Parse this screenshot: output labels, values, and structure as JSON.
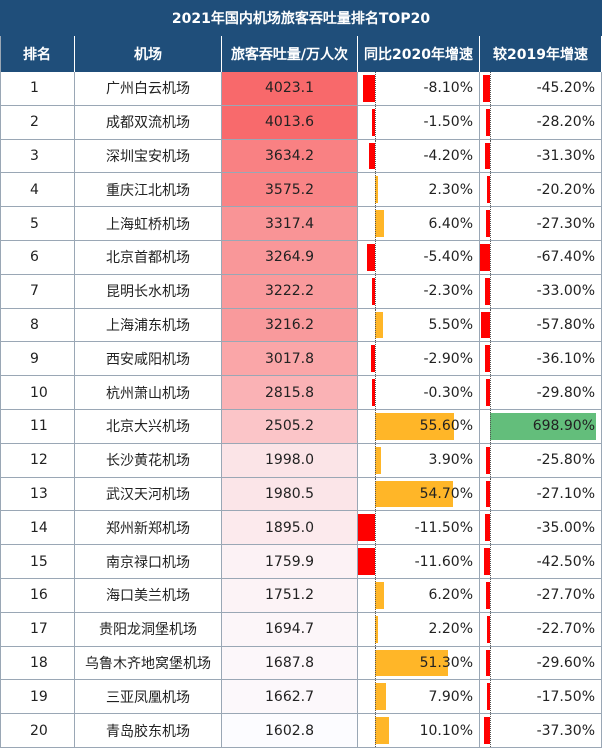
{
  "chart_data": {
    "type": "table",
    "title": "2021年国内机场旅客吞吐量排名TOP20",
    "columns": [
      "排名",
      "机场",
      "旅客吞吐量/万人次",
      "同比2020年增速",
      "较2019年增速"
    ],
    "rows": [
      {
        "rank": "1",
        "airport": "广州白云机场",
        "value": "4023.1",
        "vs2020": "-8.10%",
        "vs2019": "-45.20%",
        "v": 4023.1,
        "g20": -8.1,
        "g19": -45.2
      },
      {
        "rank": "2",
        "airport": "成都双流机场",
        "value": "4013.6",
        "vs2020": "-1.50%",
        "vs2019": "-28.20%",
        "v": 4013.6,
        "g20": -1.5,
        "g19": -28.2
      },
      {
        "rank": "3",
        "airport": "深圳宝安机场",
        "value": "3634.2",
        "vs2020": "-4.20%",
        "vs2019": "-31.30%",
        "v": 3634.2,
        "g20": -4.2,
        "g19": -31.3
      },
      {
        "rank": "4",
        "airport": "重庆江北机场",
        "value": "3575.2",
        "vs2020": "2.30%",
        "vs2019": "-20.20%",
        "v": 3575.2,
        "g20": 2.3,
        "g19": -20.2
      },
      {
        "rank": "5",
        "airport": "上海虹桥机场",
        "value": "3317.4",
        "vs2020": "6.40%",
        "vs2019": "-27.30%",
        "v": 3317.4,
        "g20": 6.4,
        "g19": -27.3
      },
      {
        "rank": "6",
        "airport": "北京首都机场",
        "value": "3264.9",
        "vs2020": "-5.40%",
        "vs2019": "-67.40%",
        "v": 3264.9,
        "g20": -5.4,
        "g19": -67.4
      },
      {
        "rank": "7",
        "airport": "昆明长水机场",
        "value": "3222.2",
        "vs2020": "-2.30%",
        "vs2019": "-33.00%",
        "v": 3222.2,
        "g20": -2.3,
        "g19": -33.0
      },
      {
        "rank": "8",
        "airport": "上海浦东机场",
        "value": "3216.2",
        "vs2020": "5.50%",
        "vs2019": "-57.80%",
        "v": 3216.2,
        "g20": 5.5,
        "g19": -57.8
      },
      {
        "rank": "9",
        "airport": "西安咸阳机场",
        "value": "3017.8",
        "vs2020": "-2.90%",
        "vs2019": "-36.10%",
        "v": 3017.8,
        "g20": -2.9,
        "g19": -36.1
      },
      {
        "rank": "10",
        "airport": "杭州萧山机场",
        "value": "2815.8",
        "vs2020": "-0.30%",
        "vs2019": "-29.80%",
        "v": 2815.8,
        "g20": -0.3,
        "g19": -29.8
      },
      {
        "rank": "11",
        "airport": "北京大兴机场",
        "value": "2505.2",
        "vs2020": "55.60%",
        "vs2019": "698.90%",
        "v": 2505.2,
        "g20": 55.6,
        "g19": 698.9
      },
      {
        "rank": "12",
        "airport": "长沙黄花机场",
        "value": "1998.0",
        "vs2020": "3.90%",
        "vs2019": "-25.80%",
        "v": 1998.0,
        "g20": 3.9,
        "g19": -25.8
      },
      {
        "rank": "13",
        "airport": "武汉天河机场",
        "value": "1980.5",
        "vs2020": "54.70%",
        "vs2019": "-27.10%",
        "v": 1980.5,
        "g20": 54.7,
        "g19": -27.1
      },
      {
        "rank": "14",
        "airport": "郑州新郑机场",
        "value": "1895.0",
        "vs2020": "-11.50%",
        "vs2019": "-35.00%",
        "v": 1895.0,
        "g20": -11.5,
        "g19": -35.0
      },
      {
        "rank": "15",
        "airport": "南京禄口机场",
        "value": "1759.9",
        "vs2020": "-11.60%",
        "vs2019": "-42.50%",
        "v": 1759.9,
        "g20": -11.6,
        "g19": -42.5
      },
      {
        "rank": "16",
        "airport": "海口美兰机场",
        "value": "1751.2",
        "vs2020": "6.20%",
        "vs2019": "-27.70%",
        "v": 1751.2,
        "g20": 6.2,
        "g19": -27.7
      },
      {
        "rank": "17",
        "airport": "贵阳龙洞堡机场",
        "value": "1694.7",
        "vs2020": "2.20%",
        "vs2019": "-22.70%",
        "v": 1694.7,
        "g20": 2.2,
        "g19": -22.7
      },
      {
        "rank": "18",
        "airport": "乌鲁木齐地窝堡机场",
        "value": "1687.8",
        "vs2020": "51.30%",
        "vs2019": "-29.60%",
        "v": 1687.8,
        "g20": 51.3,
        "g19": -29.6
      },
      {
        "rank": "19",
        "airport": "三亚凤凰机场",
        "value": "1662.7",
        "vs2020": "7.90%",
        "vs2019": "-17.50%",
        "v": 1662.7,
        "g20": 7.9,
        "g19": -17.5
      },
      {
        "rank": "20",
        "airport": "青岛胶东机场",
        "value": "1602.8",
        "vs2020": "10.10%",
        "vs2019": "-37.30%",
        "v": 1602.8,
        "g20": 10.1,
        "g19": -37.3
      }
    ]
  },
  "colors": {
    "header_bg": "#1f4e7a",
    "header_text": "#ffffff",
    "heat_high": "#f8696b",
    "heat_low": "#fcfcff",
    "negative_bar": "#ff0000",
    "positive_bar": "#ffb628",
    "positive_bar_2019": "#63be7b",
    "grid": "#9aa7b5"
  }
}
